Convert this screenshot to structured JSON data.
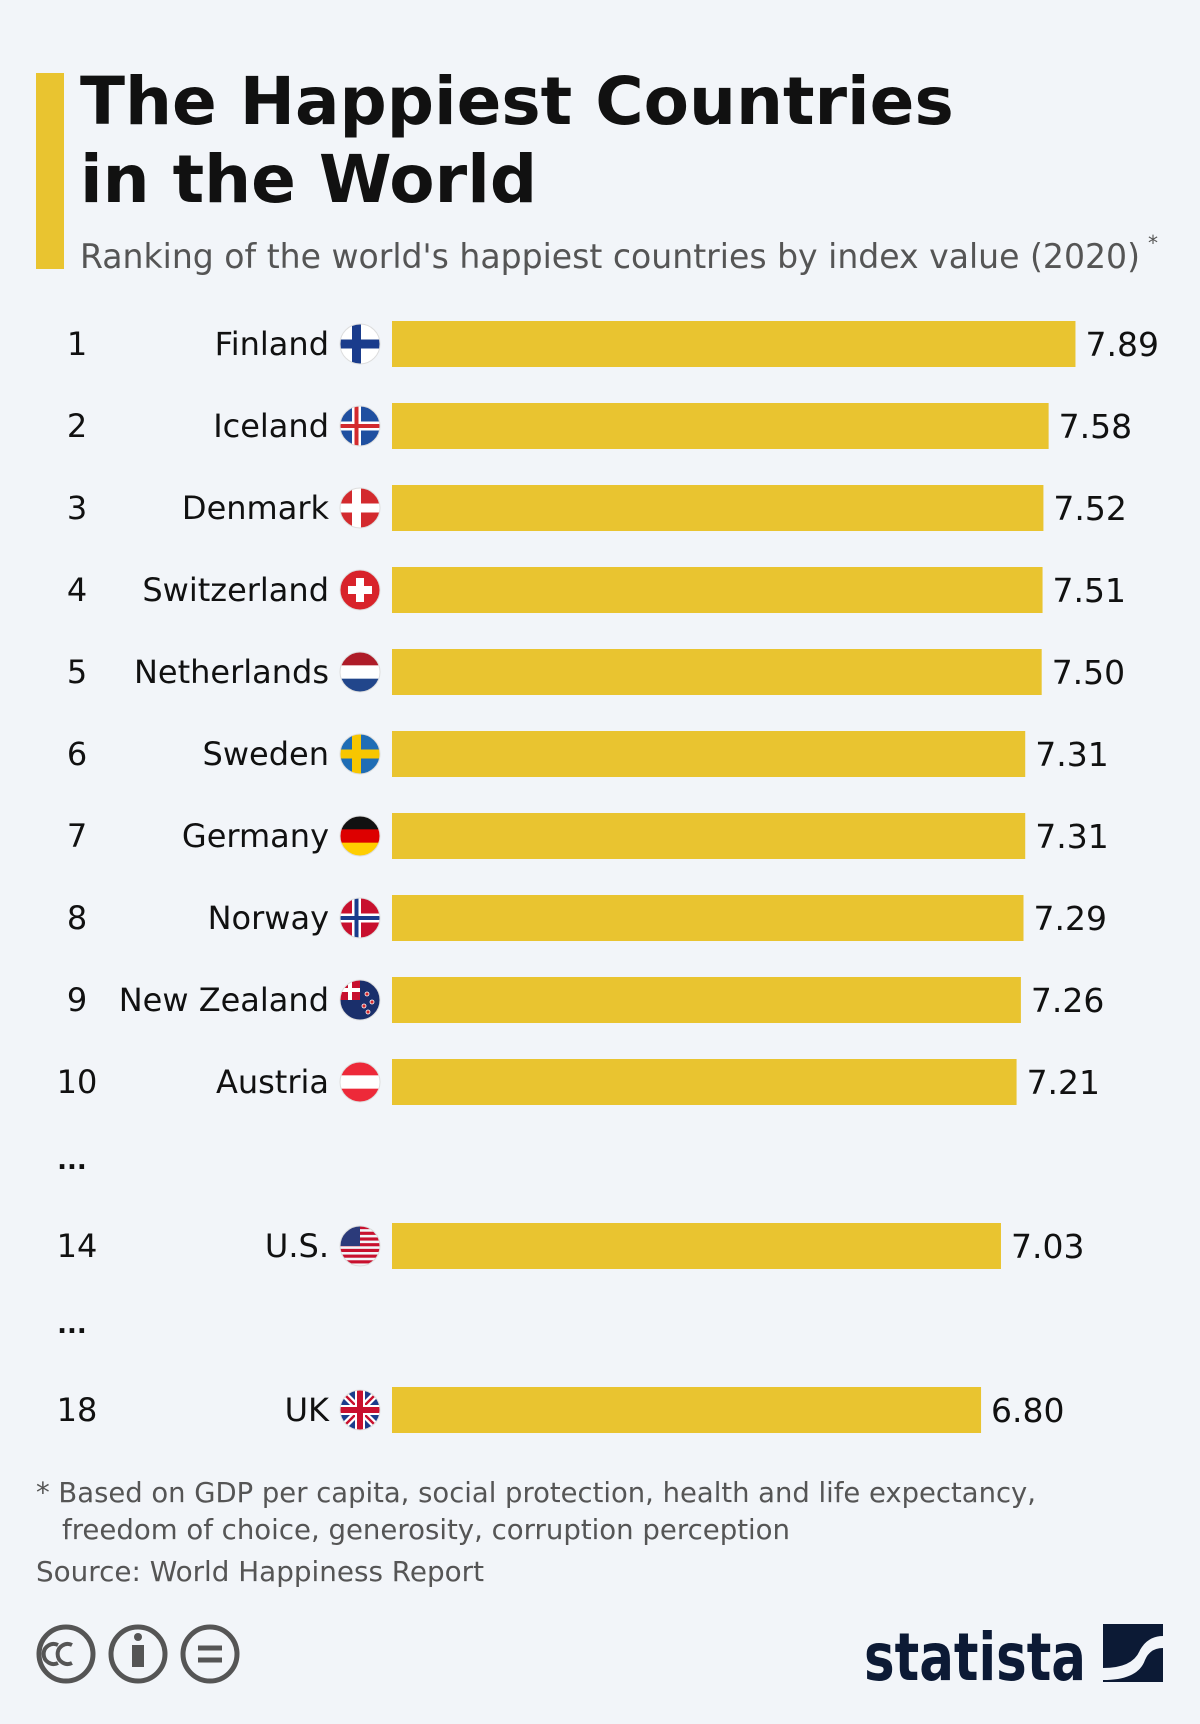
{
  "chart_data": {
    "type": "bar",
    "orientation": "horizontal",
    "title_lines": [
      "The Happiest Countries",
      "in the World"
    ],
    "subtitle": "Ranking of the world's happiest countries by index value (2020)",
    "subtitle_mark": "*",
    "ranks": [
      "1",
      "2",
      "3",
      "4",
      "5",
      "6",
      "7",
      "8",
      "9",
      "10",
      "14",
      "18"
    ],
    "categories": [
      "Finland",
      "Iceland",
      "Denmark",
      "Switzerland",
      "Netherlands",
      "Sweden",
      "Germany",
      "Norway",
      "New Zealand",
      "Austria",
      "U.S.",
      "UK"
    ],
    "values": [
      7.89,
      7.58,
      7.52,
      7.51,
      7.5,
      7.31,
      7.31,
      7.29,
      7.26,
      7.21,
      7.03,
      6.8
    ],
    "value_labels": [
      "7.89",
      "7.58",
      "7.52",
      "7.51",
      "7.50",
      "7.31",
      "7.31",
      "7.29",
      "7.26",
      "7.21",
      "7.03",
      "6.80"
    ],
    "gap_markers": [
      "...",
      "..."
    ],
    "color": "#e9c430",
    "xlim": [
      0,
      8
    ],
    "footnote_lines": [
      "* Based on GDP per capita, social protection, health and life expectancy,",
      "freedom of choice, generosity, corruption perception"
    ],
    "source": "Source: World Happiness Report",
    "brand": "statista"
  }
}
